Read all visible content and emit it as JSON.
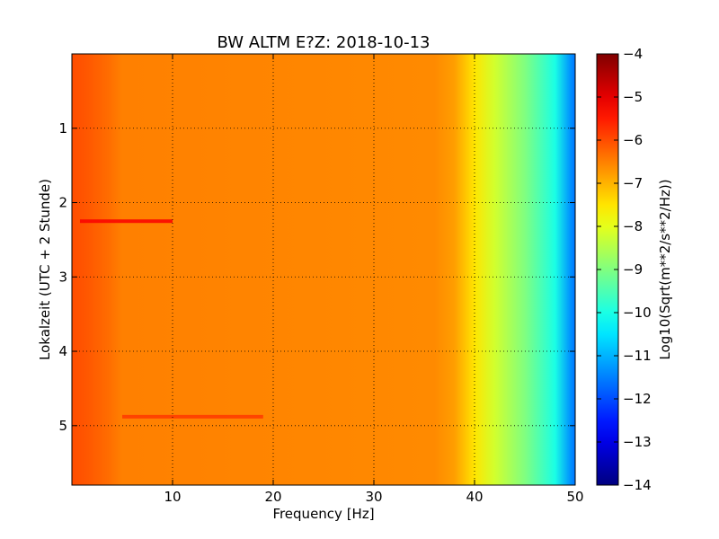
{
  "chart_data": {
    "type": "heatmap",
    "title": "BW ALTM E?Z: 2018-10-13",
    "xlabel": "Frequency [Hz]",
    "ylabel": "Lokalzeit (UTC + 2 Stunde)",
    "colorbar_label": "Log10(Sqrt(m**2/s**2/Hz))",
    "colormap": "jet",
    "xlim": [
      0,
      50
    ],
    "ylim": [
      0,
      5.8
    ],
    "y_inverted": true,
    "x_ticks": [
      10,
      20,
      30,
      40,
      50
    ],
    "x_tick_labels": [
      "10",
      "20",
      "30",
      "40",
      "50"
    ],
    "y_ticks": [
      1,
      2,
      3,
      4,
      5
    ],
    "y_tick_labels": [
      "1",
      "2",
      "3",
      "4",
      "5"
    ],
    "colorbar_range": [
      -14,
      -4
    ],
    "colorbar_ticks": [
      -4,
      -5,
      -6,
      -7,
      -8,
      -9,
      -10,
      -11,
      -12,
      -13,
      -14
    ],
    "colorbar_tick_labels": [
      "−4",
      "−5",
      "−6",
      "−7",
      "−8",
      "−9",
      "−10",
      "−11",
      "−12",
      "−13",
      "−14"
    ],
    "grid": true,
    "spectrum_profile": [
      {
        "freq": 0,
        "value": -6.0
      },
      {
        "freq": 1.5,
        "value": -6.1
      },
      {
        "freq": 3.5,
        "value": -6.3
      },
      {
        "freq": 5,
        "value": -6.5
      },
      {
        "freq": 36,
        "value": -6.6
      },
      {
        "freq": 38,
        "value": -6.8
      },
      {
        "freq": 40,
        "value": -7.5
      },
      {
        "freq": 42,
        "value": -8.2
      },
      {
        "freq": 45,
        "value": -9.0
      },
      {
        "freq": 48,
        "value": -10.0
      },
      {
        "freq": 49.5,
        "value": -11.3
      },
      {
        "freq": 50,
        "value": -11.6
      }
    ],
    "features": [
      {
        "time": 2.25,
        "freq_start": 0.8,
        "freq_end": 10,
        "value": -5.2
      },
      {
        "time": 4.88,
        "freq_start": 5,
        "freq_end": 19,
        "value": -5.8
      }
    ]
  }
}
